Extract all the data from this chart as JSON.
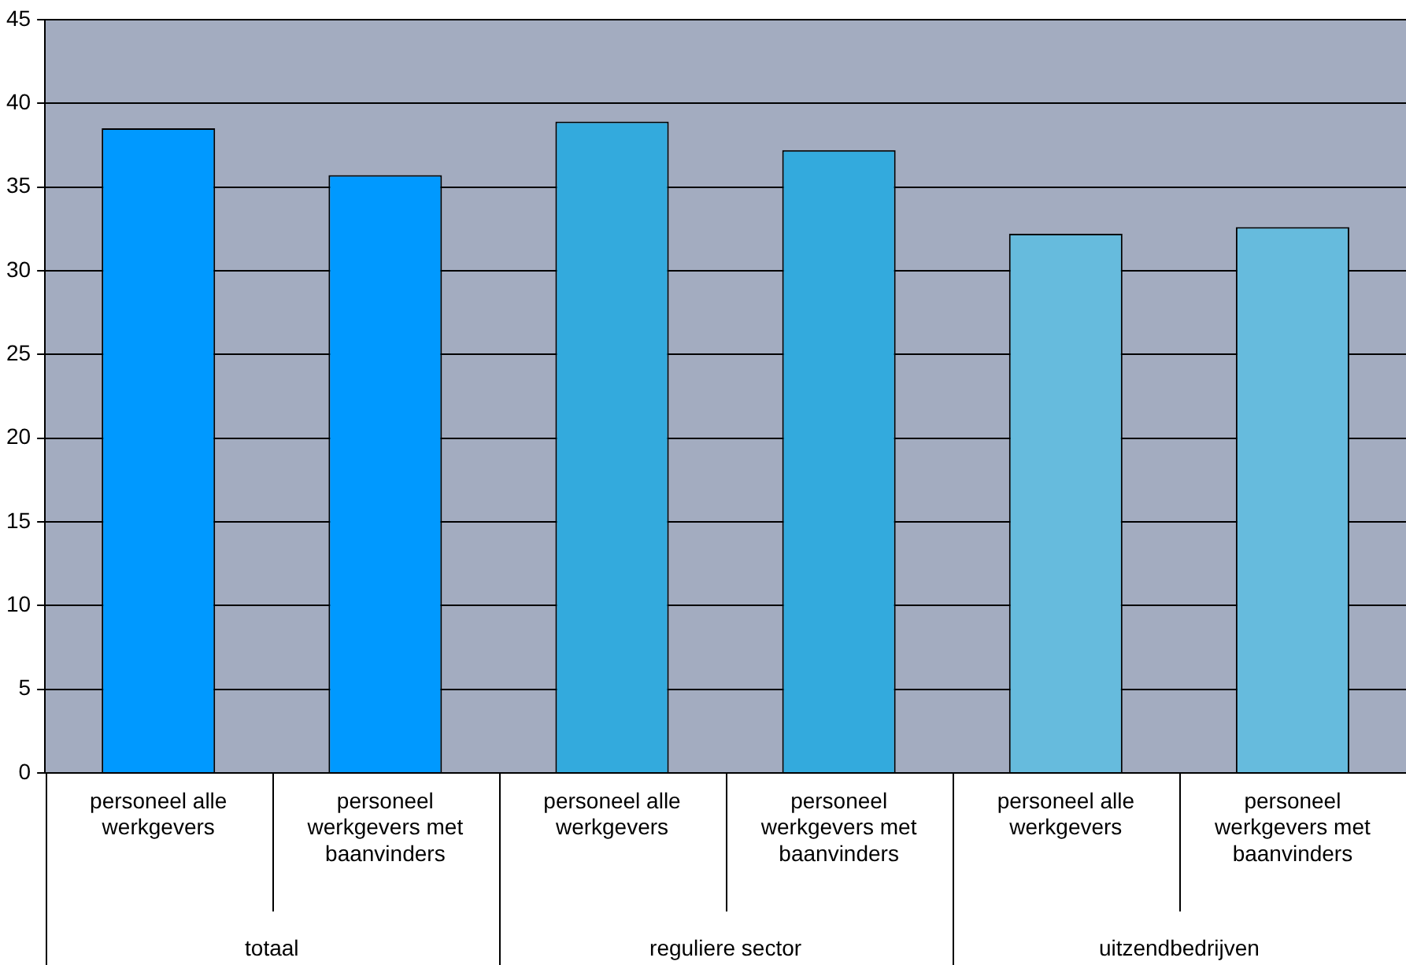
{
  "chart_data": {
    "type": "bar",
    "categories": [
      "personeel alle werkgevers",
      "personeel werkgevers met baanvinders",
      "personeel alle werkgevers",
      "personeel werkgevers met baanvinders",
      "personeel alle werkgevers",
      "personeel werkgevers met baanvinders"
    ],
    "values": [
      38.5,
      35.7,
      38.9,
      37.2,
      32.2,
      32.6
    ],
    "colors": [
      "#0099ff",
      "#0099ff",
      "#33aadd",
      "#33aadd",
      "#66bbdd",
      "#66bbdd"
    ],
    "annotations": [
      "totaal",
      "reguliere sector",
      "uitzendbedrijven"
    ],
    "ylim": [
      0,
      45
    ],
    "yticks": [
      0,
      5,
      10,
      15,
      20,
      25,
      30,
      35,
      40,
      45
    ],
    "grid": "y",
    "legend": false
  }
}
